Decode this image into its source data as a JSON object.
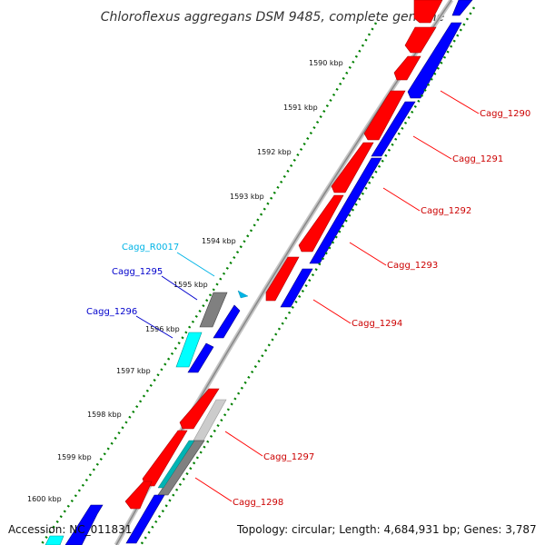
{
  "title": "Chloroflexus aggregans DSM 9485, complete genome",
  "accession": "Accession: NC_011831",
  "summary": "Topology: circular; Length: 4,684,931 bp; Genes: 3,787",
  "ruler_ticks": [
    "1590 kbp",
    "1591 kbp",
    "1592 kbp",
    "1593 kbp",
    "1594 kbp",
    "1595 kbp",
    "1596 kbp",
    "1597 kbp",
    "1598 kbp",
    "1599 kbp",
    "1600 kbp"
  ],
  "gene_labels": {
    "cagg_1290": "Cagg_1290",
    "cagg_1291": "Cagg_1291",
    "cagg_1292": "Cagg_1292",
    "cagg_1293": "Cagg_1293",
    "cagg_1294": "Cagg_1294",
    "cagg_1295": "Cagg_1295",
    "cagg_1296": "Cagg_1296",
    "cagg_1297": "Cagg_1297",
    "cagg_1298": "Cagg_1298",
    "cagg_r0017": "Cagg_R0017"
  },
  "colors": {
    "cds": "#ff0000",
    "orf": "#0000ff",
    "rna": "#00ffff",
    "other_gene": "#808080",
    "backbone": "#999999",
    "tick": "#008000",
    "label_cds": "#cc0000",
    "label_orf": "#0000cc",
    "label_rna": "#00b4e6"
  }
}
